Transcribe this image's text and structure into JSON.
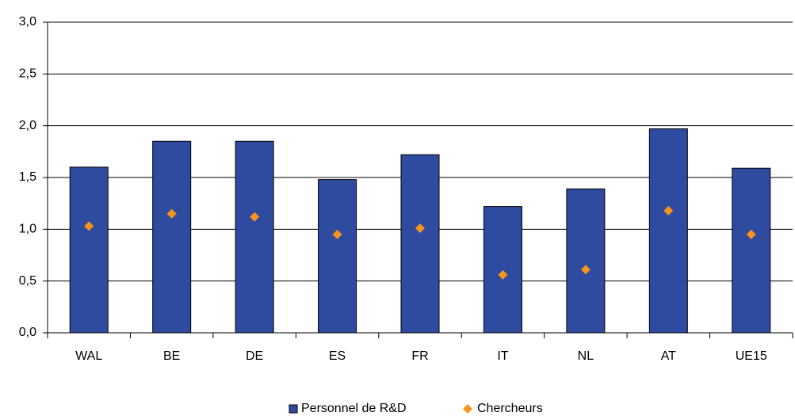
{
  "chart_data": {
    "type": "bar",
    "categories": [
      "WAL",
      "BE",
      "DE",
      "ES",
      "FR",
      "IT",
      "NL",
      "AT",
      "UE15"
    ],
    "series": [
      {
        "name": "Personnel de R&D",
        "color": "#2f4b9f",
        "mark": "bar",
        "values": [
          1.6,
          1.85,
          1.85,
          1.48,
          1.72,
          1.22,
          1.39,
          1.97,
          1.59
        ]
      },
      {
        "name": "Chercheurs",
        "color": "#f7941d",
        "mark": "diamond",
        "values": [
          1.03,
          1.15,
          1.12,
          0.95,
          1.01,
          0.56,
          0.61,
          1.18,
          0.95
        ]
      }
    ],
    "ylim": [
      0,
      3
    ],
    "yticks": [
      {
        "value": 0,
        "label": "0,0"
      },
      {
        "value": 0.5,
        "label": "0,5"
      },
      {
        "value": 1,
        "label": "1,0"
      },
      {
        "value": 1.5,
        "label": "1,5"
      },
      {
        "value": 2,
        "label": "2,0"
      },
      {
        "value": 2.5,
        "label": "2,5"
      },
      {
        "value": 3,
        "label": "3,0"
      }
    ],
    "grid": true,
    "legend": "bottom"
  }
}
